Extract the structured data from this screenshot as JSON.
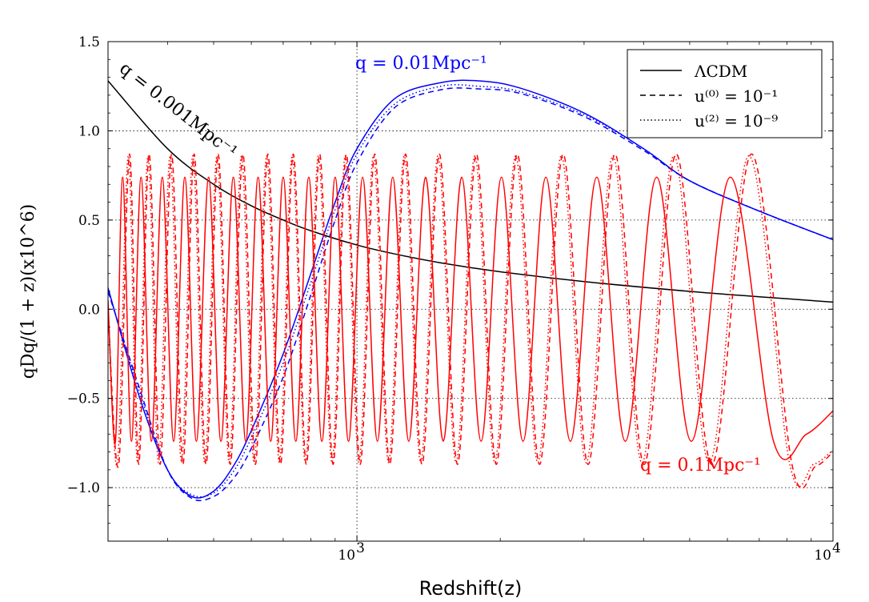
{
  "chart_data": {
    "type": "line",
    "xlabel": "Redshift(z)",
    "ylabel": "qDq/(1 + z)(x10^6)",
    "xscale": "log",
    "xlim": [
      300,
      10000
    ],
    "ylim": [
      -1.3,
      1.5
    ],
    "xticks": [
      {
        "value": 1000,
        "base": "10",
        "exp": "3"
      },
      {
        "value": 10000,
        "base": "10",
        "exp": "4"
      }
    ],
    "yticks": [
      {
        "value": 1.5,
        "label": "1.5"
      },
      {
        "value": 1.0,
        "label": "1.0"
      },
      {
        "value": 0.5,
        "label": "0.5"
      },
      {
        "value": 0.0,
        "label": "0.0"
      },
      {
        "value": -0.5,
        "label": "−0.5"
      },
      {
        "value": -1.0,
        "label": "−1.0"
      }
    ],
    "grid": "dotted",
    "legend_position": "top-right",
    "legend": [
      {
        "style": "solid",
        "text": "ΛCDM"
      },
      {
        "style": "dashed",
        "text": "u⁽⁰⁾ = 10⁻¹"
      },
      {
        "style": "dotted",
        "text": "u⁽²⁾ = 10⁻⁹"
      }
    ],
    "annotations": [
      {
        "text": "q = 0.001Mpc⁻¹",
        "color": "#000000"
      },
      {
        "text": "q = 0.01Mpc⁻¹",
        "color": "#0000ff"
      },
      {
        "text": "q = 0.1Mpc⁻¹",
        "color": "#ff0000"
      }
    ],
    "series": [
      {
        "name": "q=0.001 ΛCDM",
        "color": "#000000",
        "style": "solid",
        "x": [
          300,
          400,
          500,
          600,
          700,
          800,
          1000,
          1200,
          1500,
          2000,
          3000,
          5000,
          7000,
          10000
        ],
        "y": [
          1.28,
          0.9,
          0.7,
          0.58,
          0.5,
          0.44,
          0.36,
          0.31,
          0.26,
          0.21,
          0.155,
          0.1,
          0.07,
          0.04
        ]
      },
      {
        "name": "q=0.01 ΛCDM",
        "color": "#0000ff",
        "style": "solid",
        "x": [
          300,
          350,
          400,
          450,
          500,
          550,
          600,
          700,
          800,
          900,
          1000,
          1200,
          1500,
          1800,
          2200,
          3000,
          4000,
          5000,
          7000,
          10000
        ],
        "y": [
          0.12,
          -0.5,
          -0.9,
          -1.05,
          -1.02,
          -0.88,
          -0.68,
          -0.25,
          0.2,
          0.6,
          0.9,
          1.18,
          1.27,
          1.28,
          1.24,
          1.1,
          0.9,
          0.72,
          0.55,
          0.39
        ]
      },
      {
        "name": "q=0.01 u(0)=1e-1",
        "color": "#0000ff",
        "style": "dashed",
        "x": [
          300,
          350,
          400,
          450,
          500,
          550,
          600,
          700,
          800,
          900,
          1000,
          1200,
          1500,
          1800,
          2200,
          3000,
          4000,
          5000,
          7000,
          10000
        ],
        "y": [
          0.1,
          -0.45,
          -0.9,
          -1.06,
          -1.05,
          -0.95,
          -0.78,
          -0.38,
          0.08,
          0.5,
          0.82,
          1.13,
          1.23,
          1.235,
          1.21,
          1.08,
          0.89,
          0.72,
          0.55,
          0.39
        ]
      },
      {
        "name": "q=0.01 u(2)=1e-9",
        "color": "#0000ff",
        "style": "dotted",
        "x": [
          300,
          350,
          400,
          450,
          500,
          550,
          600,
          700,
          800,
          900,
          1000,
          1200,
          1500,
          1800,
          2200,
          3000,
          4000,
          5000,
          7000,
          10000
        ],
        "y": [
          0.11,
          -0.47,
          -0.9,
          -1.04,
          -1.03,
          -0.91,
          -0.72,
          -0.3,
          0.15,
          0.56,
          0.87,
          1.15,
          1.25,
          1.25,
          1.22,
          1.09,
          0.9,
          0.72,
          0.55,
          0.39
        ]
      },
      {
        "name": "q=0.1 ΛCDM",
        "color": "#ff0000",
        "style": "solid",
        "x": [
          300,
          311,
          322,
          336,
          352,
          370,
          390,
          412,
          435,
          460,
          488,
          518,
          550,
          584,
          620,
          659,
          700,
          744,
          792,
          844,
          900,
          960,
          1028,
          1104,
          1189,
          1285,
          1394,
          1518,
          1660,
          1823,
          2012,
          2233,
          2494,
          2808,
          3190,
          3663,
          4262,
          5040,
          6086,
          7500,
          8800,
          10000
        ],
        "y": [
          0.05,
          -0.74,
          0.74,
          -0.74,
          0.74,
          -0.74,
          0.74,
          -0.74,
          0.74,
          -0.74,
          0.74,
          -0.74,
          0.74,
          -0.74,
          0.74,
          -0.74,
          0.74,
          -0.74,
          0.74,
          -0.74,
          0.74,
          -0.74,
          0.74,
          -0.74,
          0.74,
          -0.74,
          0.74,
          -0.74,
          0.74,
          -0.74,
          0.74,
          -0.74,
          0.74,
          -0.74,
          0.74,
          -0.74,
          0.74,
          -0.74,
          0.74,
          -0.74,
          -0.7,
          -0.57
        ]
      },
      {
        "name": "q=0.1 u(0)=1e-1",
        "color": "#ff0000",
        "style": "dashed",
        "x": [
          300,
          316,
          333,
          348,
          366,
          386,
          408,
          431,
          455,
          482,
          511,
          542,
          576,
          612,
          650,
          691,
          735,
          783,
          835,
          891,
          950,
          1016,
          1090,
          1172,
          1265,
          1370,
          1490,
          1626,
          1782,
          1962,
          2172,
          2419,
          2711,
          3060,
          3484,
          4012,
          4685,
          5564,
          6743,
          8200,
          9200,
          10000
        ],
        "y": [
          0.0,
          -0.87,
          0.87,
          -0.87,
          0.87,
          -0.87,
          0.87,
          -0.87,
          0.87,
          -0.87,
          0.87,
          -0.87,
          0.87,
          -0.87,
          0.87,
          -0.87,
          0.87,
          -0.87,
          0.87,
          -0.87,
          0.87,
          -0.87,
          0.87,
          -0.87,
          0.87,
          -0.87,
          0.87,
          -0.87,
          0.87,
          -0.87,
          0.87,
          -0.87,
          0.87,
          -0.87,
          0.87,
          -0.87,
          0.87,
          -0.87,
          0.87,
          -0.87,
          -0.88,
          -0.8
        ]
      },
      {
        "name": "q=0.1 u(2)=1e-9",
        "color": "#ff0000",
        "style": "dotted",
        "x": [
          300,
          314,
          331,
          346,
          364,
          383,
          405,
          428,
          452,
          479,
          508,
          539,
          572,
          608,
          646,
          687,
          731,
          779,
          830,
          886,
          945,
          1010,
          1083,
          1165,
          1257,
          1361,
          1480,
          1615,
          1769,
          1948,
          2155,
          2399,
          2687,
          3031,
          3449,
          3970,
          4632,
          5497,
          6656,
          8100,
          9100,
          10000
        ],
        "y": [
          0.02,
          -0.86,
          0.86,
          -0.86,
          0.86,
          -0.86,
          0.86,
          -0.86,
          0.86,
          -0.86,
          0.86,
          -0.86,
          0.86,
          -0.86,
          0.86,
          -0.86,
          0.86,
          -0.86,
          0.86,
          -0.86,
          0.86,
          -0.86,
          0.86,
          -0.86,
          0.86,
          -0.86,
          0.86,
          -0.86,
          0.86,
          -0.86,
          0.86,
          -0.86,
          0.86,
          -0.86,
          0.86,
          -0.86,
          0.86,
          -0.86,
          0.86,
          -0.86,
          -0.87,
          -0.79
        ]
      }
    ]
  }
}
